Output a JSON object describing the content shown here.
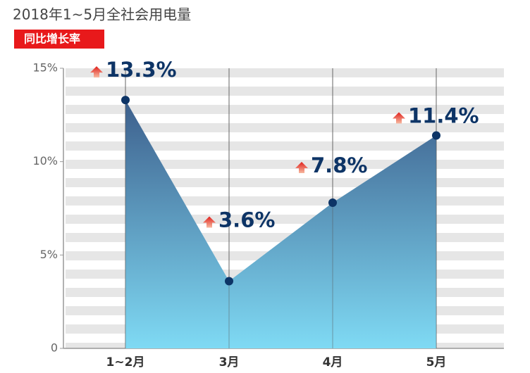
{
  "chart_data": {
    "type": "area",
    "title": "2018年1~5月全社会用电量",
    "subtitle": "同比增长率",
    "categories": [
      "1~2月",
      "3月",
      "4月",
      "5月"
    ],
    "values": [
      13.3,
      3.6,
      7.8,
      11.4
    ],
    "value_labels": [
      "13.3%",
      "3.6%",
      "7.8%",
      "11.4%"
    ],
    "ylim": [
      0,
      15
    ],
    "yticks": [
      0,
      {
        "value": 5,
        "label": "5%"
      },
      {
        "value": 10,
        "label": "10%"
      },
      {
        "value": 15,
        "label": "15%"
      }
    ],
    "color": "#0d3466"
  }
}
